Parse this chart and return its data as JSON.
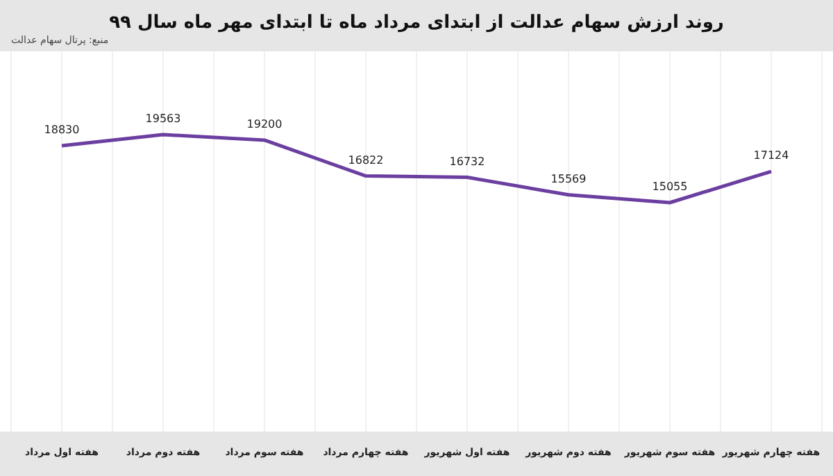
{
  "chart_data": {
    "type": "line",
    "title": "روند ارزش سهام عدالت از ابتدای مرداد ماه تا ابتدای مهر ماه سال ۹۹",
    "annotations": [
      "منبع: پرتال سهام عدالت"
    ],
    "categories": [
      "هفته اول مرداد",
      "هفته دوم مرداد",
      "هفته سوم مرداد",
      "هفته چهارم مرداد",
      "هفته اول شهریور",
      "هفته دوم شهریور",
      "هفته سوم شهریور",
      "هفته چهارم شهریور"
    ],
    "series": [
      {
        "color": "#6b3fa0",
        "values": [
          18830,
          19563,
          19200,
          16822,
          16732,
          15569,
          15055,
          17124
        ]
      }
    ],
    "data_labels": true,
    "tick_labels": "x",
    "grid": "x",
    "marker": "none",
    "line_style": "solid"
  }
}
